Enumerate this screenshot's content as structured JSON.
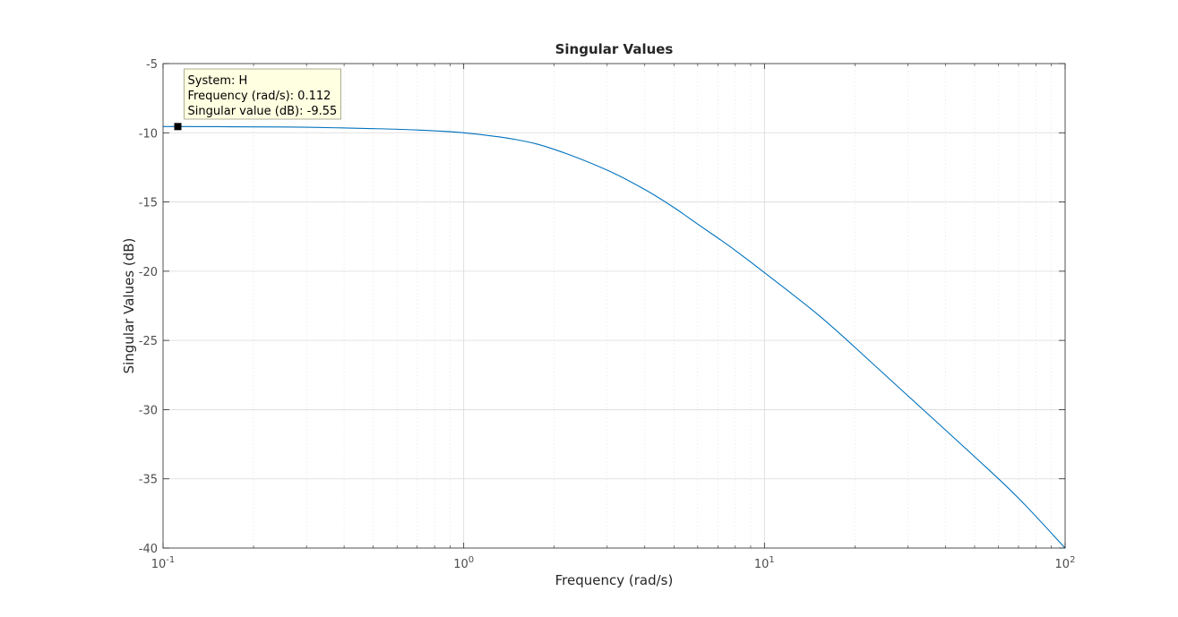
{
  "chart_data": {
    "type": "line",
    "title": "Singular Values",
    "xlabel": "Frequency (rad/s)",
    "ylabel": "Singular Values (dB)",
    "xscale": "log",
    "xlim": [
      0.1,
      100
    ],
    "ylim": [
      -40,
      -5
    ],
    "grid": true,
    "x_ticks": [
      {
        "base": "10",
        "exp": "-1",
        "value": 0.1
      },
      {
        "base": "10",
        "exp": "0",
        "value": 1
      },
      {
        "base": "10",
        "exp": "1",
        "value": 10
      },
      {
        "base": "10",
        "exp": "2",
        "value": 100
      }
    ],
    "y_ticks": [
      {
        "label": "-5",
        "value": -5
      },
      {
        "label": "-10",
        "value": -10
      },
      {
        "label": "-15",
        "value": -15
      },
      {
        "label": "-20",
        "value": -20
      },
      {
        "label": "-25",
        "value": -25
      },
      {
        "label": "-30",
        "value": -30
      },
      {
        "label": "-35",
        "value": -35
      },
      {
        "label": "-40",
        "value": -40
      }
    ],
    "series": [
      {
        "color": "#0072bd",
        "x": [
          0.1,
          0.112,
          0.2,
          0.3,
          0.5,
          0.7,
          1.0,
          1.5,
          2.0,
          3.0,
          4.0,
          5.0,
          6.0,
          7.0,
          8.0,
          10.0,
          15.0,
          20.0,
          30.0,
          50.0,
          70.0,
          100.0
        ],
        "y": [
          -9.55,
          -9.55,
          -9.57,
          -9.6,
          -9.7,
          -9.8,
          -10.0,
          -10.5,
          -11.2,
          -12.7,
          -14.1,
          -15.4,
          -16.6,
          -17.6,
          -18.5,
          -20.1,
          -23.1,
          -25.5,
          -29.0,
          -33.4,
          -36.4,
          -40.0
        ]
      }
    ],
    "datatip": {
      "x": 0.112,
      "y": -9.55,
      "line1": "System: H",
      "line2": "Frequency (rad/s): 0.112",
      "line3": "Singular value (dB): -9.55"
    }
  }
}
